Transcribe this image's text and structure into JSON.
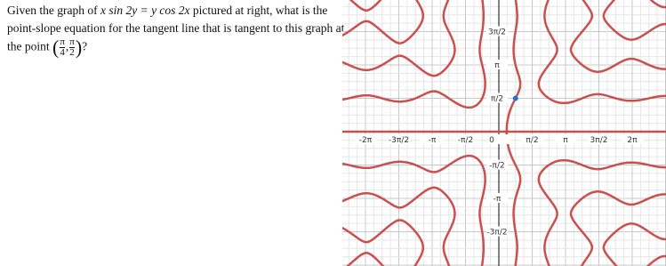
{
  "question": {
    "intro": "Given the graph of",
    "equation": "x sin 2y = y cos 2x",
    "body": "pictured at right, what is the point-slope equation for the tangent line that is tangent to this graph at the point",
    "point": {
      "x_num": "π",
      "x_den": "4",
      "y_num": "π",
      "y_den": "2"
    },
    "end": "?"
  },
  "graph": {
    "x_labels": [
      "-2π",
      "-3π/2",
      "-π",
      "-π/2",
      "0",
      "π/2",
      "π",
      "3π/2",
      "2π"
    ],
    "y_labels": [
      "3π/2",
      "π",
      "π/2",
      "-π/2",
      "-π",
      "-3π/2"
    ]
  }
}
